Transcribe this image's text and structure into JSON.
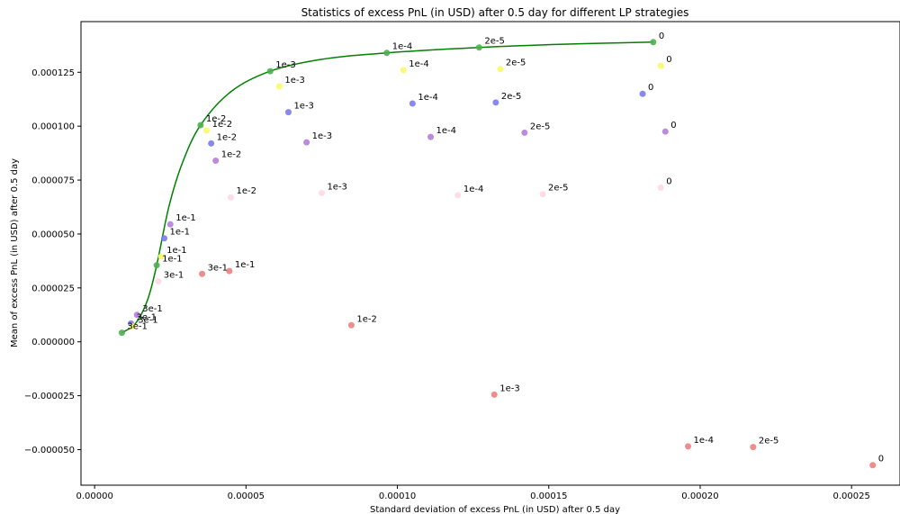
{
  "chart_data": {
    "type": "scatter",
    "title": "Statistics of excess PnL (in USD) after 0.5 day for different LP strategies",
    "xlabel": "Standard deviation of excess PnL (in USD) after 0.5 day",
    "ylabel": "Mean of excess PnL (in USD) after 0.5 day",
    "xlim": [
      -4.5e-06,
      0.000266
    ],
    "ylim": [
      -6.65e-05,
      0.0001485
    ],
    "xticks": [
      0,
      5e-05,
      0.0001,
      0.00015,
      0.0002,
      0.00025
    ],
    "xtick_labels": [
      "0.00000",
      "0.00005",
      "0.00010",
      "0.00015",
      "0.00020",
      "0.00025"
    ],
    "yticks": [
      -5e-05,
      -2.5e-05,
      0,
      2.5e-05,
      5e-05,
      7.5e-05,
      0.0001,
      0.000125
    ],
    "ytick_labels": [
      "−0.000050",
      "−0.000025",
      "0.000000",
      "0.000025",
      "0.000050",
      "0.000075",
      "0.000100",
      "0.000125"
    ],
    "grid": false,
    "series": [
      {
        "color": "#f08080",
        "points": [
          {
            "x": 3.55e-05,
            "y": 3.15e-05,
            "label": "3e-1"
          },
          {
            "x": 4.45e-05,
            "y": 3.28e-05,
            "label": "1e-1"
          },
          {
            "x": 8.48e-05,
            "y": 7.7e-06,
            "label": "1e-2"
          },
          {
            "x": 0.000132,
            "y": -2.45e-05,
            "label": "1e-3"
          },
          {
            "x": 0.000196,
            "y": -4.85e-05,
            "label": "1e-4"
          },
          {
            "x": 0.0002175,
            "y": -4.88e-05,
            "label": "2e-5"
          },
          {
            "x": 0.000257,
            "y": -5.72e-05,
            "label": "0"
          }
        ]
      },
      {
        "color": "#ffd8e6",
        "points": [
          {
            "x": 2.1e-05,
            "y": 2.8e-05,
            "label": "3e-1"
          },
          {
            "x": 4.5e-05,
            "y": 6.7e-05,
            "label": "1e-2"
          },
          {
            "x": 7.5e-05,
            "y": 6.9e-05,
            "label": "1e-3"
          },
          {
            "x": 0.00012,
            "y": 6.8e-05,
            "label": "1e-4"
          },
          {
            "x": 0.000148,
            "y": 6.85e-05,
            "label": "2e-5"
          },
          {
            "x": 0.000187,
            "y": 7.15e-05,
            "label": "0"
          }
        ]
      },
      {
        "color": "#b57edc",
        "points": [
          {
            "x": 1.4e-05,
            "y": 1.25e-05,
            "label": "3e-1"
          },
          {
            "x": 2.5e-05,
            "y": 5.45e-05,
            "label": "1e-1"
          },
          {
            "x": 4e-05,
            "y": 8.4e-05,
            "label": "1e-2"
          },
          {
            "x": 7e-05,
            "y": 9.25e-05,
            "label": "1e-3"
          },
          {
            "x": 0.000111,
            "y": 9.5e-05,
            "label": "1e-4"
          },
          {
            "x": 0.000142,
            "y": 9.7e-05,
            "label": "2e-5"
          },
          {
            "x": 0.0001885,
            "y": 9.75e-05,
            "label": "0"
          }
        ]
      },
      {
        "color": "#7b7bee",
        "points": [
          {
            "x": 1.2e-05,
            "y": 8.5e-06,
            "label": "3e-1"
          },
          {
            "x": 2.3e-05,
            "y": 4.8e-05,
            "label": "1e-1"
          },
          {
            "x": 3.85e-05,
            "y": 9.2e-05,
            "label": "1e-2"
          },
          {
            "x": 6.4e-05,
            "y": 0.0001065,
            "label": "1e-3"
          },
          {
            "x": 0.000105,
            "y": 0.0001105,
            "label": "1e-4"
          },
          {
            "x": 0.0001325,
            "y": 0.000111,
            "label": "2e-5"
          },
          {
            "x": 0.000181,
            "y": 0.000115,
            "label": "0"
          }
        ]
      },
      {
        "color": "#fafa66",
        "points": [
          {
            "x": 1.25e-05,
            "y": 7.2e-06,
            "label": "3e-1"
          },
          {
            "x": 2.2e-05,
            "y": 3.95e-05,
            "label": "1e-1"
          },
          {
            "x": 3.7e-05,
            "y": 9.8e-05,
            "label": "1e-2"
          },
          {
            "x": 6.1e-05,
            "y": 0.0001185,
            "label": "1e-3"
          },
          {
            "x": 0.000102,
            "y": 0.000126,
            "label": "1e-4"
          },
          {
            "x": 0.000134,
            "y": 0.0001265,
            "label": "2e-5"
          },
          {
            "x": 0.000187,
            "y": 0.000128,
            "label": "0"
          }
        ]
      },
      {
        "color": "#4caf50",
        "points": [
          {
            "x": 9e-06,
            "y": 4.2e-06,
            "label": "3e-1"
          },
          {
            "x": 2.05e-05,
            "y": 3.55e-05,
            "label": "1e-1"
          },
          {
            "x": 3.5e-05,
            "y": 0.0001005,
            "label": "1e-2"
          },
          {
            "x": 5.8e-05,
            "y": 0.0001255,
            "label": "1e-3"
          },
          {
            "x": 9.65e-05,
            "y": 0.000134,
            "label": "1e-4"
          },
          {
            "x": 0.000127,
            "y": 0.0001365,
            "label": "2e-5"
          },
          {
            "x": 0.0001845,
            "y": 0.000139,
            "label": "0"
          }
        ]
      }
    ],
    "frontier_curve": {
      "color": "#008000",
      "points": [
        {
          "x": 9e-06,
          "y": 4.2e-06
        },
        {
          "x": 1.35e-05,
          "y": 8.5e-06
        },
        {
          "x": 1.75e-05,
          "y": 1.95e-05
        },
        {
          "x": 2.05e-05,
          "y": 3.55e-05
        },
        {
          "x": 2.45e-05,
          "y": 6.25e-05
        },
        {
          "x": 2.9e-05,
          "y": 8.3e-05
        },
        {
          "x": 3.5e-05,
          "y": 0.0001005
        },
        {
          "x": 4.5e-05,
          "y": 0.000116
        },
        {
          "x": 5.8e-05,
          "y": 0.0001255
        },
        {
          "x": 7.5e-05,
          "y": 0.000131
        },
        {
          "x": 9.65e-05,
          "y": 0.000134
        },
        {
          "x": 0.000127,
          "y": 0.0001365
        },
        {
          "x": 0.000155,
          "y": 0.000138
        },
        {
          "x": 0.0001845,
          "y": 0.000139
        }
      ]
    }
  }
}
